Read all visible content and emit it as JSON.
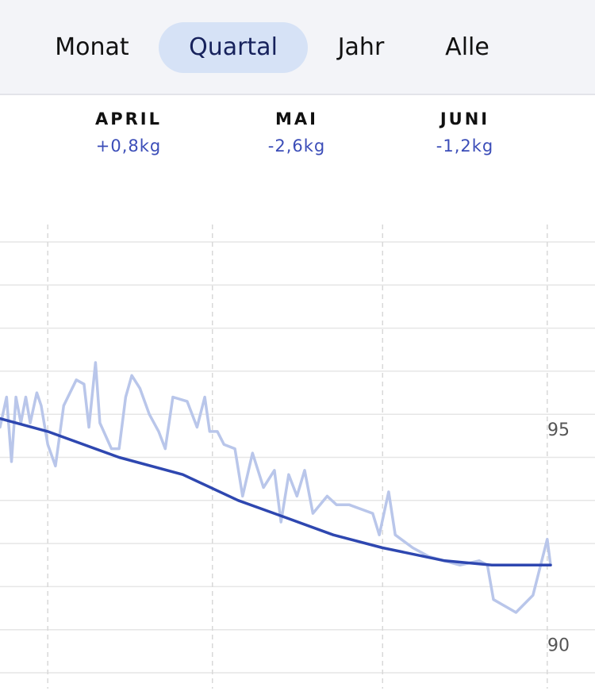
{
  "tabs": {
    "items": [
      "Monat",
      "Quartal",
      "Jahr",
      "Alle"
    ],
    "selected": 1
  },
  "summary": [
    {
      "month": "APRIL",
      "change": "+0,8kg"
    },
    {
      "month": "MAI",
      "change": "-2,6kg"
    },
    {
      "month": "JUNI",
      "change": "-1,2kg"
    }
  ],
  "chart_data": {
    "type": "line",
    "xlim": [
      -8.7,
      99.7
    ],
    "xticks": [
      {
        "value": 0,
        "label": null
      },
      {
        "value": 30,
        "label": null
      },
      {
        "value": 61,
        "label": null
      },
      {
        "value": 91,
        "label": null
      }
    ],
    "ylim": [
      89,
      99
    ],
    "yticks": [
      {
        "value": 89,
        "label": null
      },
      90,
      {
        "value": 91,
        "label": null
      },
      {
        "value": 92,
        "label": null
      },
      {
        "value": 93,
        "label": null
      },
      {
        "value": 94,
        "label": null
      },
      95,
      {
        "value": 96,
        "label": null
      },
      {
        "value": 97,
        "label": null
      },
      {
        "value": 98,
        "label": null
      },
      {
        "value": 99,
        "label": null
      }
    ],
    "grid": true,
    "series": [
      {
        "color": "#b9c6ea",
        "x": [
          -8.7,
          -7.5,
          -6.6,
          -5.8,
          -4.9,
          -4.0,
          -3.2,
          -2.0,
          -1.2,
          0,
          1.4,
          2.9,
          5.2,
          6.6,
          7.5,
          8.7,
          9.5,
          11.6,
          13.0,
          14.2,
          15.3,
          16.8,
          18.5,
          20.2,
          21.4,
          22.8,
          25.4,
          27.2,
          28.6,
          29.5,
          30.9,
          32.1,
          34.1,
          35.5,
          37.3,
          39.3,
          41.3,
          42.5,
          43.9,
          45.4,
          46.8,
          48.3,
          50.9,
          52.6,
          54.9,
          59.2,
          60.4,
          62.1,
          63.3,
          66.5,
          69.4,
          75.1,
          78.6,
          80.1,
          81.2,
          85.3,
          88.4,
          91.0,
          91.6
        ],
        "values": [
          94.7,
          95.4,
          93.9,
          95.4,
          94.8,
          95.4,
          94.8,
          95.5,
          95.2,
          94.3,
          93.8,
          95.2,
          95.8,
          95.7,
          94.7,
          96.2,
          94.8,
          94.2,
          94.2,
          95.4,
          95.9,
          95.6,
          95.0,
          94.6,
          94.2,
          95.4,
          95.3,
          94.7,
          95.4,
          94.6,
          94.6,
          94.3,
          94.2,
          93.1,
          94.1,
          93.3,
          93.7,
          92.5,
          93.6,
          93.1,
          93.7,
          92.7,
          93.1,
          92.9,
          92.9,
          92.7,
          92.2,
          93.2,
          92.2,
          91.9,
          91.7,
          91.5,
          91.6,
          91.5,
          90.7,
          90.4,
          90.8,
          92.1,
          91.5
        ]
      },
      {
        "color": "#2e47b0",
        "x": [
          -8.7,
          0,
          13.0,
          24.6,
          34.7,
          43.4,
          52.0,
          61.0,
          72.3,
          80.9,
          91.6
        ],
        "values": [
          94.9,
          94.6,
          94.0,
          93.6,
          93.0,
          92.6,
          92.2,
          91.9,
          91.6,
          91.5,
          91.5
        ]
      }
    ]
  }
}
